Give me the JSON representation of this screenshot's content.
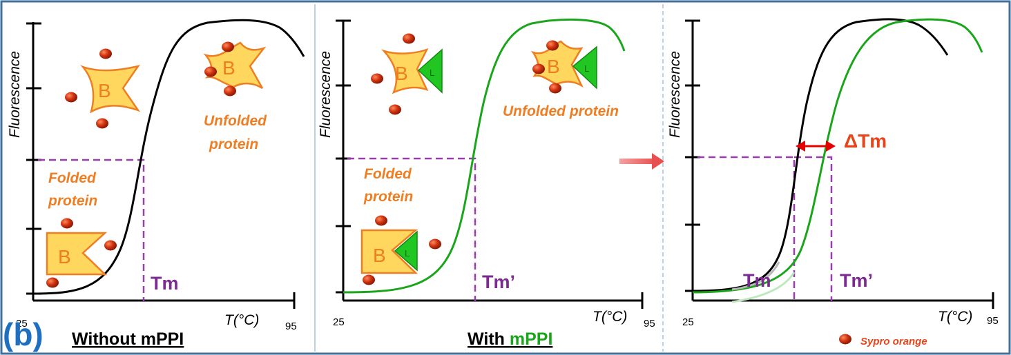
{
  "figure_label": "(b)",
  "y_axis_label": "Fluorescence",
  "x_axis_label": "T(°C)",
  "x_ticks": [
    "25",
    "95"
  ],
  "protein_letter": "B",
  "ligand_letter": "L",
  "panels": [
    {
      "caption": "Without mPPI",
      "folded_label": [
        "Folded",
        "protein"
      ],
      "unfolded_label": [
        "Unfolded",
        "protein"
      ],
      "tm_label": "Tm"
    },
    {
      "caption_prefix": "With ",
      "caption_highlight": "mPPI",
      "folded_label": [
        "Folded",
        "protein"
      ],
      "unfolded_label": "Unfolded protein",
      "tm_label": "Tm’"
    },
    {
      "delta_label": "ΔTm",
      "tm_label": "Tm",
      "tm2_label": "Tm’",
      "legend_label": "Sypro orange"
    }
  ],
  "colors": {
    "border": "#41709c",
    "curve_without": "#000000",
    "curve_with": "#1aa51a",
    "dashed": "#9b3bb0",
    "tm_text": "#7b2a8f",
    "protein_fill": "#ffd75e",
    "protein_stroke": "#ef7d22",
    "ligand_fill": "#22c622",
    "dye": "#d0320f",
    "arrow": "#e60000",
    "label_orange": "#ef7d22",
    "figure_label": "#1f6fc0"
  }
}
